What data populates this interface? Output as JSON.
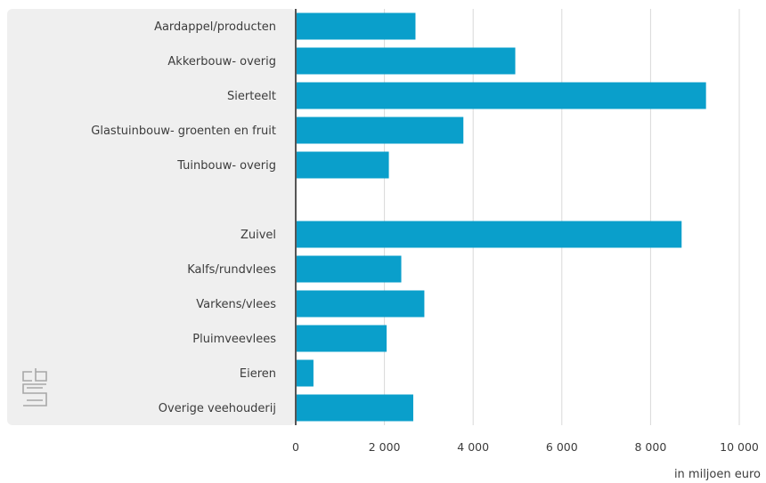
{
  "chart_data": {
    "type": "bar",
    "orientation": "horizontal",
    "categories": [
      "Aardappel/producten",
      "Akkerbouw- overig",
      "Sierteelt",
      "Glastuinbouw- groenten en fruit",
      "Tuinbouw- overig",
      "",
      "Zuivel",
      "Kalfs/rundvlees",
      "Varkens/vlees",
      "Pluimveevlees",
      "Eieren",
      "Overige veehouderij"
    ],
    "values": [
      2700,
      4950,
      9250,
      3780,
      2100,
      null,
      8700,
      2380,
      2900,
      2050,
      400,
      2650
    ],
    "xlim": [
      0,
      10000
    ],
    "xticks": [
      0,
      2000,
      4000,
      6000,
      8000,
      10000
    ],
    "xtick_labels": [
      "0",
      "2 000",
      "4 000",
      "6 000",
      "8 000",
      "10 000"
    ],
    "xlabel": "in miljoen euro",
    "grid": true,
    "bar_color": "#0a9fcb",
    "label_panel_color": "#efefef",
    "gridline_color": "#d8d8d8",
    "axis_color": "#555555"
  },
  "logo": {
    "text": "cbs",
    "icon": "cbs-logo-icon",
    "color": "#a7a7a7"
  }
}
